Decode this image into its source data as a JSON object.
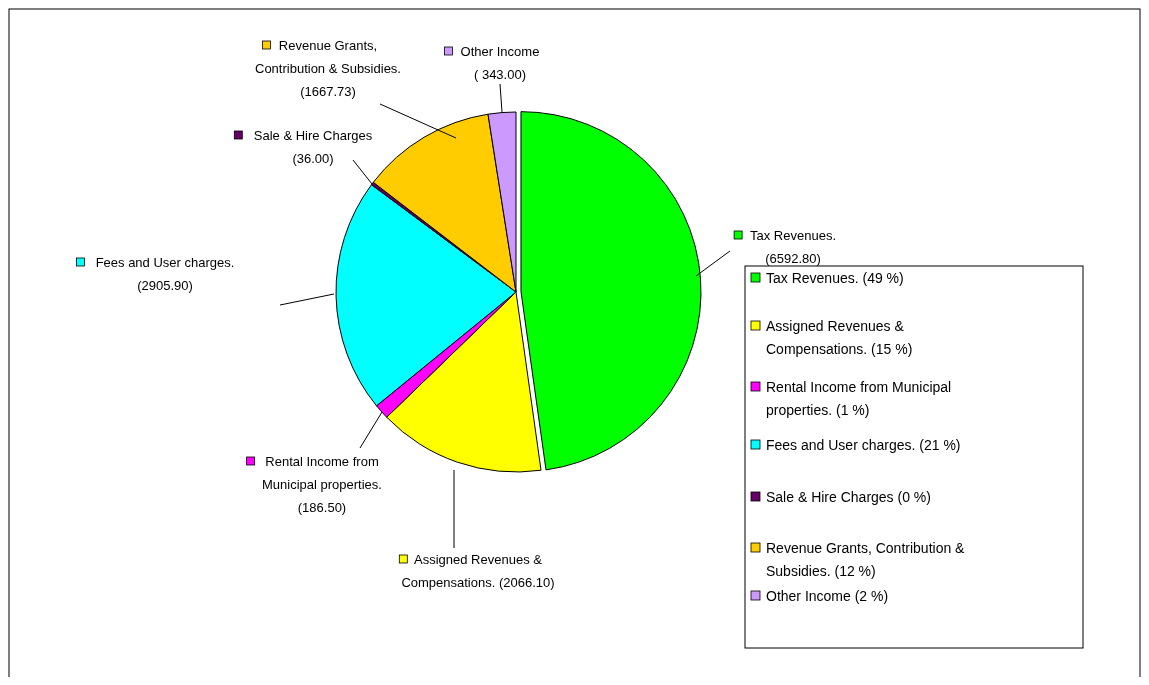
{
  "chart_data": {
    "type": "pie",
    "categories": [
      "Tax Revenues. (49 %)",
      "Assigned  Revenues &\nCompensations. (15 %)",
      "Rental Income from Municipal\nproperties. (1 %)",
      "Fees and User charges. (21 %)",
      "Sale & Hire Charges (0 %)",
      "Revenue Grants, Contribution &\nSubsidies. (12 %)",
      "Other Income (2 %)"
    ],
    "values": [
      6592.8,
      2066.1,
      186.5,
      2905.9,
      36.0,
      1667.73,
      343.0
    ],
    "value_labels": [
      "Tax Revenues.\n(6592.80)",
      "Assigned Revenues &\nCompensations. (2066.10)",
      "Rental Income from\nMunicipal properties.\n(186.50)",
      "Fees and User charges.\n(2905.90)",
      "Sale & Hire Charges\n(36.00)",
      "Revenue Grants,\nContribution & Subsidies.\n(1667.73)",
      "Other Income\n( 343.00)"
    ],
    "colors": [
      "#00ff00",
      "#ffff00",
      "#ff00ff",
      "#00ffff",
      "#660066",
      "#ffcc00",
      "#cc99ff"
    ],
    "legend": "right"
  }
}
